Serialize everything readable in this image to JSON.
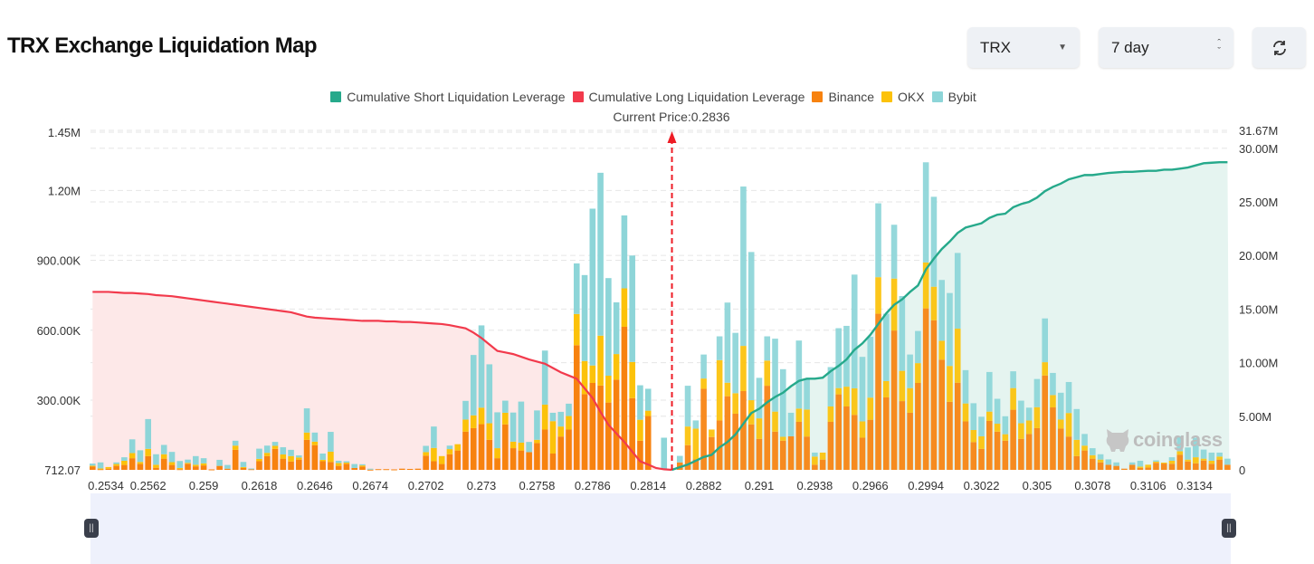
{
  "header": {
    "title": "TRX Exchange Liquidation Map",
    "coin_select": "TRX",
    "range_select": "7 day",
    "refresh_icon": "refresh-icon"
  },
  "watermark": "coinglass",
  "colors": {
    "short": "#26a98b",
    "long": "#f23a4c",
    "binance": "#f7820f",
    "okx": "#fcc20a",
    "bybit": "#8dd5d8",
    "long_area": "#fde8e8",
    "short_area": "#e5f4f0",
    "current_price": "#ee1c25"
  },
  "chart_data": {
    "type": "bar",
    "stacked": true,
    "legend": [
      "Cumulative Short Liquidation Leverage",
      "Cumulative Long Liquidation Leverage",
      "Binance",
      "OKX",
      "Bybit"
    ],
    "legend_position": "top",
    "current_price_label": "Current Price:0.2836",
    "current_price_index": 73,
    "x_tick_labels": [
      "0.2534",
      "0.2562",
      "0.259",
      "0.2618",
      "0.2646",
      "0.2674",
      "0.2702",
      "0.273",
      "0.2758",
      "0.2786",
      "0.2814",
      "0.2882",
      "0.291",
      "0.2938",
      "0.2966",
      "0.2994",
      "0.3022",
      "0.305",
      "0.3078",
      "0.3106",
      "0.3134"
    ],
    "left_axis": {
      "ticks": [
        "712.07",
        "300.00K",
        "600.00K",
        "900.00K",
        "1.20M",
        "1.45M"
      ],
      "tick_values": [
        712.07,
        300000,
        600000,
        900000,
        1200000,
        1450000
      ],
      "range": [
        712.07,
        1450000
      ]
    },
    "right_axis": {
      "ticks": [
        "0",
        "5.00M",
        "10.00M",
        "15.00M",
        "20.00M",
        "25.00M",
        "30.00M",
        "31.67M"
      ],
      "tick_values": [
        0,
        5000000,
        10000000,
        15000000,
        20000000,
        25000000,
        30000000,
        31670000
      ],
      "range": [
        0,
        31670000
      ]
    },
    "grid": true,
    "series": [
      {
        "name": "Binance",
        "values": [
          15000,
          3000,
          5000,
          17000,
          21000,
          50000,
          25000,
          59000,
          9000,
          48000,
          21000,
          3000,
          26000,
          15000,
          19000,
          2000,
          17000,
          5000,
          86000,
          9000,
          3000,
          37000,
          59000,
          90000,
          48000,
          36000,
          44000,
          129000,
          106000,
          37000,
          34000,
          17000,
          26000,
          8000,
          14000,
          1000,
          3000,
          3000,
          2000,
          5000,
          4000,
          5000,
          61000,
          37000,
          25000,
          67000,
          83000,
          164000,
          179000,
          196000,
          129000,
          50000,
          195000,
          93000,
          83000,
          76000,
          115000,
          173000,
          70000,
          143000,
          173000,
          535000,
          325000,
          373000,
          362000,
          289000,
          387000,
          614000,
          308000,
          125000,
          231000,
          0,
          0,
          0,
          32000,
          106000,
          45000,
          348000,
          141000,
          212000,
          316000,
          241000,
          338000,
          195000,
          133000,
          361000,
          164000,
          125000,
          144000,
          206000,
          143000,
          22000,
          44000,
          206000,
          324000,
          272000,
          236000,
          138000,
          215000,
          670000,
          311000,
          598000,
          295000,
          245000,
          373000,
          693000,
          642000,
          473000,
          292000,
          374000,
          208000,
          119000,
          90000,
          210000,
          164000,
          125000,
          258000,
          133000,
          154000,
          179000,
          405000,
          268000,
          177000,
          143000,
          59000,
          83000,
          48000,
          32000,
          22000,
          17000,
          5000,
          22000,
          8000,
          10000,
          30000,
          27000,
          26000,
          65000,
          36000,
          28000,
          40000,
          26000,
          44000,
          22000
        ]
      },
      {
        "name": "OKX",
        "values": [
          3000,
          3000,
          7000,
          8000,
          18000,
          22000,
          9000,
          31000,
          13000,
          19000,
          12000,
          5000,
          4000,
          7000,
          9000,
          0,
          0,
          0,
          18000,
          3000,
          0,
          10000,
          14000,
          13000,
          18000,
          23000,
          9000,
          31000,
          15000,
          6000,
          44000,
          12000,
          5000,
          0,
          5000,
          0,
          0,
          0,
          0,
          0,
          0,
          0,
          15000,
          57000,
          34000,
          22000,
          27000,
          52000,
          55000,
          71000,
          71000,
          43000,
          50000,
          28000,
          34000,
          0,
          14000,
          107000,
          139000,
          43000,
          58000,
          134000,
          142000,
          75000,
          214000,
          115000,
          110000,
          165000,
          155000,
          90000,
          23000,
          0,
          0,
          0,
          0,
          80000,
          132000,
          44000,
          32000,
          259000,
          58000,
          88000,
          194000,
          104000,
          88000,
          108000,
          86000,
          17000,
          0,
          57000,
          116000,
          35000,
          30000,
          66000,
          27000,
          85000,
          114000,
          70000,
          95000,
          157000,
          70000,
          223000,
          130000,
          106000,
          85000,
          197000,
          144000,
          81000,
          154000,
          232000,
          77000,
          52000,
          54000,
          40000,
          34000,
          28000,
          93000,
          67000,
          58000,
          90000,
          57000,
          53000,
          39000,
          101000,
          70000,
          21000,
          15000,
          12000,
          0,
          0,
          0,
          0,
          6000,
          12000,
          5000,
          4000,
          13000,
          15000,
          8000,
          26000,
          8000,
          13000,
          13000,
          0
        ]
      },
      {
        "name": "Bybit",
        "values": [
          9000,
          26000,
          0,
          7000,
          15000,
          59000,
          50000,
          128000,
          45000,
          40000,
          44000,
          30000,
          14000,
          37000,
          22000,
          0,
          26000,
          16000,
          21000,
          22000,
          3000,
          44000,
          31000,
          17000,
          31000,
          27000,
          9000,
          104000,
          39000,
          27000,
          85000,
          10000,
          6000,
          17000,
          5000,
          4000,
          0,
          0,
          0,
          0,
          0,
          0,
          27000,
          92000,
          0,
          15000,
          0,
          80000,
          259000,
          353000,
          253000,
          154000,
          52000,
          125000,
          176000,
          44000,
          126000,
          232000,
          36000,
          63000,
          53000,
          217000,
          369000,
          673000,
          699000,
          419000,
          222000,
          313000,
          457000,
          148000,
          94000,
          0,
          138000,
          0,
          28000,
          175000,
          35000,
          103000,
          0,
          102000,
          344000,
          259000,
          684000,
          636000,
          174000,
          104000,
          313000,
          290000,
          101000,
          292000,
          130000,
          17000,
          0,
          169000,
          257000,
          261000,
          488000,
          277000,
          261000,
          317000,
          289000,
          231000,
          321000,
          144000,
          138000,
          430000,
          386000,
          261000,
          313000,
          325000,
          143000,
          115000,
          84000,
          170000,
          107000,
          77000,
          72000,
          97000,
          55000,
          121000,
          188000,
          95000,
          115000,
          133000,
          132000,
          50000,
          30000,
          23000,
          23000,
          15000,
          0,
          10000,
          25000,
          0,
          6000,
          0,
          15000,
          65000,
          52000,
          84000,
          39000,
          35000,
          17000,
          26000
        ]
      },
      {
        "name": "Cumulative Long Liquidation Leverage",
        "axis": "right",
        "values": [
          16600000,
          16600000,
          16600000,
          16550000,
          16500000,
          16500000,
          16450000,
          16400000,
          16300000,
          16250000,
          16200000,
          16100000,
          16000000,
          15900000,
          15800000,
          15700000,
          15600000,
          15500000,
          15400000,
          15300000,
          15200000,
          15100000,
          15000000,
          14900000,
          14800000,
          14700000,
          14500000,
          14300000,
          14200000,
          14150000,
          14100000,
          14050000,
          14000000,
          13950000,
          13900000,
          13900000,
          13900000,
          13850000,
          13850000,
          13800000,
          13800000,
          13750000,
          13700000,
          13650000,
          13600000,
          13500000,
          13350000,
          13200000,
          12800000,
          12300000,
          11700000,
          11100000,
          10950000,
          10800000,
          10550000,
          10300000,
          10100000,
          9900000,
          9500000,
          9100000,
          8800000,
          8500000,
          7600000,
          6700000,
          5400000,
          4200000,
          3400000,
          2600000,
          1700000,
          800000,
          500000,
          170000,
          50000,
          0
        ]
      },
      {
        "name": "Cumulative Short Liquidation Leverage",
        "axis": "right",
        "start_index": 73,
        "values": [
          0,
          250000,
          500000,
          850000,
          1200000,
          1400000,
          2100000,
          2600000,
          3300000,
          4300000,
          5300000,
          5700000,
          6300000,
          6800000,
          7200000,
          7800000,
          8300000,
          8500000,
          8500000,
          8600000,
          9200000,
          9700000,
          10300000,
          11200000,
          11800000,
          12600000,
          13600000,
          14600000,
          15400000,
          15900000,
          16600000,
          17200000,
          18700000,
          19700000,
          20600000,
          21300000,
          22100000,
          22600000,
          22800000,
          23000000,
          23500000,
          23800000,
          23900000,
          24500000,
          24800000,
          25000000,
          25400000,
          26000000,
          26400000,
          26700000,
          27100000,
          27300000,
          27500000,
          27500000,
          27600000,
          27700000,
          27750000,
          27800000,
          27800000,
          27850000,
          27900000,
          27900000,
          28000000,
          28000000,
          28100000,
          28200000,
          28400000,
          28600000,
          28650000,
          28700000,
          28700000
        ]
      }
    ]
  }
}
